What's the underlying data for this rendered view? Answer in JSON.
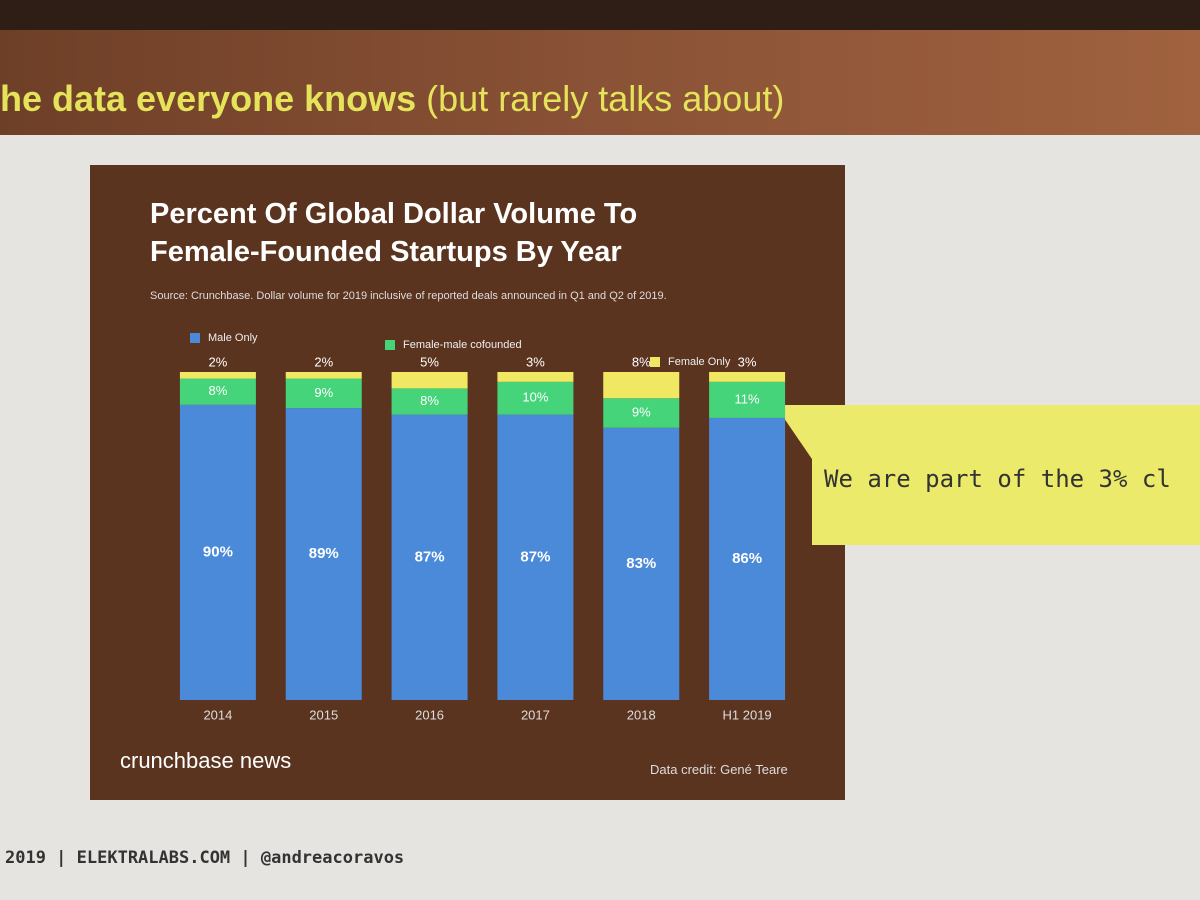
{
  "slide": {
    "title_bold": "he data everyone knows",
    "title_rest": " (but rarely talks about)",
    "callout": "We are part of the 3% cl",
    "footer": "2019 | ELEKTRALABS.COM | @andreacoravos"
  },
  "chart_data": {
    "type": "bar",
    "stacked": true,
    "title": "Percent Of Global Dollar Volume To Female-Founded Startups By Year",
    "subtitle": "Source: Crunchbase. Dollar volume for 2019 inclusive of reported deals announced in Q1 and Q2 of 2019.",
    "brand": "crunchbase news",
    "credit": "Data credit: Gené Teare",
    "categories": [
      "2014",
      "2015",
      "2016",
      "2017",
      "2018",
      "H1 2019"
    ],
    "series": [
      {
        "name": "Male Only",
        "color": "#4a8ad8",
        "values": [
          90,
          89,
          87,
          87,
          83,
          86
        ],
        "value_labels": [
          "90%",
          "89%",
          "87%",
          "87%",
          "83%",
          "86%"
        ]
      },
      {
        "name": "Female-male cofounded",
        "color": "#45d47a",
        "values": [
          8,
          9,
          8,
          10,
          9,
          11
        ],
        "value_labels": [
          "8%",
          "9%",
          "8%",
          "10%",
          "9%",
          "11%"
        ]
      },
      {
        "name": "Female Only",
        "color": "#f0e862",
        "values": [
          2,
          2,
          5,
          3,
          8,
          3
        ],
        "value_labels": [
          "2%",
          "2%",
          "5%",
          "3%",
          "8%",
          "3%"
        ]
      }
    ]
  }
}
